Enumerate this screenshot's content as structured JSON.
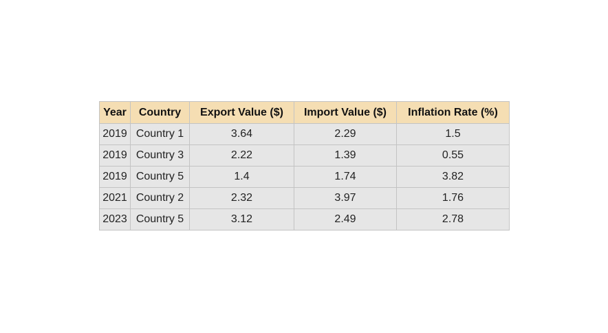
{
  "chart_data": {
    "type": "table",
    "columns": [
      "Year",
      "Country",
      "Export Value ($)",
      "Import Value ($)",
      "Inflation Rate (%)"
    ],
    "rows": [
      [
        "2019",
        "Country 1",
        "3.64",
        "2.29",
        "1.5"
      ],
      [
        "2019",
        "Country 3",
        "2.22",
        "1.39",
        "0.55"
      ],
      [
        "2019",
        "Country 5",
        "1.4",
        "1.74",
        "3.82"
      ],
      [
        "2021",
        "Country 2",
        "2.32",
        "3.97",
        "1.76"
      ],
      [
        "2023",
        "Country 5",
        "3.12",
        "2.49",
        "2.78"
      ]
    ],
    "colors": {
      "header_background": "#f5deb3",
      "cell_background": "#e6e6e6",
      "border": "#c3c3c3"
    }
  }
}
